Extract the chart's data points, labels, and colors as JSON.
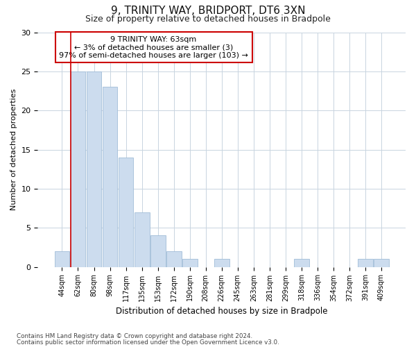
{
  "title1": "9, TRINITY WAY, BRIDPORT, DT6 3XN",
  "title2": "Size of property relative to detached houses in Bradpole",
  "xlabel": "Distribution of detached houses by size in Bradpole",
  "ylabel": "Number of detached properties",
  "bar_labels": [
    "44sqm",
    "62sqm",
    "80sqm",
    "98sqm",
    "117sqm",
    "135sqm",
    "153sqm",
    "172sqm",
    "190sqm",
    "208sqm",
    "226sqm",
    "245sqm",
    "263sqm",
    "281sqm",
    "299sqm",
    "318sqm",
    "336sqm",
    "354sqm",
    "372sqm",
    "391sqm",
    "409sqm"
  ],
  "bar_values": [
    2,
    25,
    25,
    23,
    14,
    7,
    4,
    2,
    1,
    0,
    1,
    0,
    0,
    0,
    0,
    1,
    0,
    0,
    0,
    1,
    1
  ],
  "bar_color": "#ccdcee",
  "bar_edgecolor": "#a0bcd8",
  "red_line_color": "#cc0000",
  "annotation_title": "9 TRINITY WAY: 63sqm",
  "annotation_line1": "← 3% of detached houses are smaller (3)",
  "annotation_line2": "97% of semi-detached houses are larger (103) →",
  "ylim": [
    0,
    30
  ],
  "yticks": [
    0,
    5,
    10,
    15,
    20,
    25,
    30
  ],
  "footer1": "Contains HM Land Registry data © Crown copyright and database right 2024.",
  "footer2": "Contains public sector information licensed under the Open Government Licence v3.0.",
  "bg_color": "#ffffff",
  "grid_color": "#c8d4e0"
}
